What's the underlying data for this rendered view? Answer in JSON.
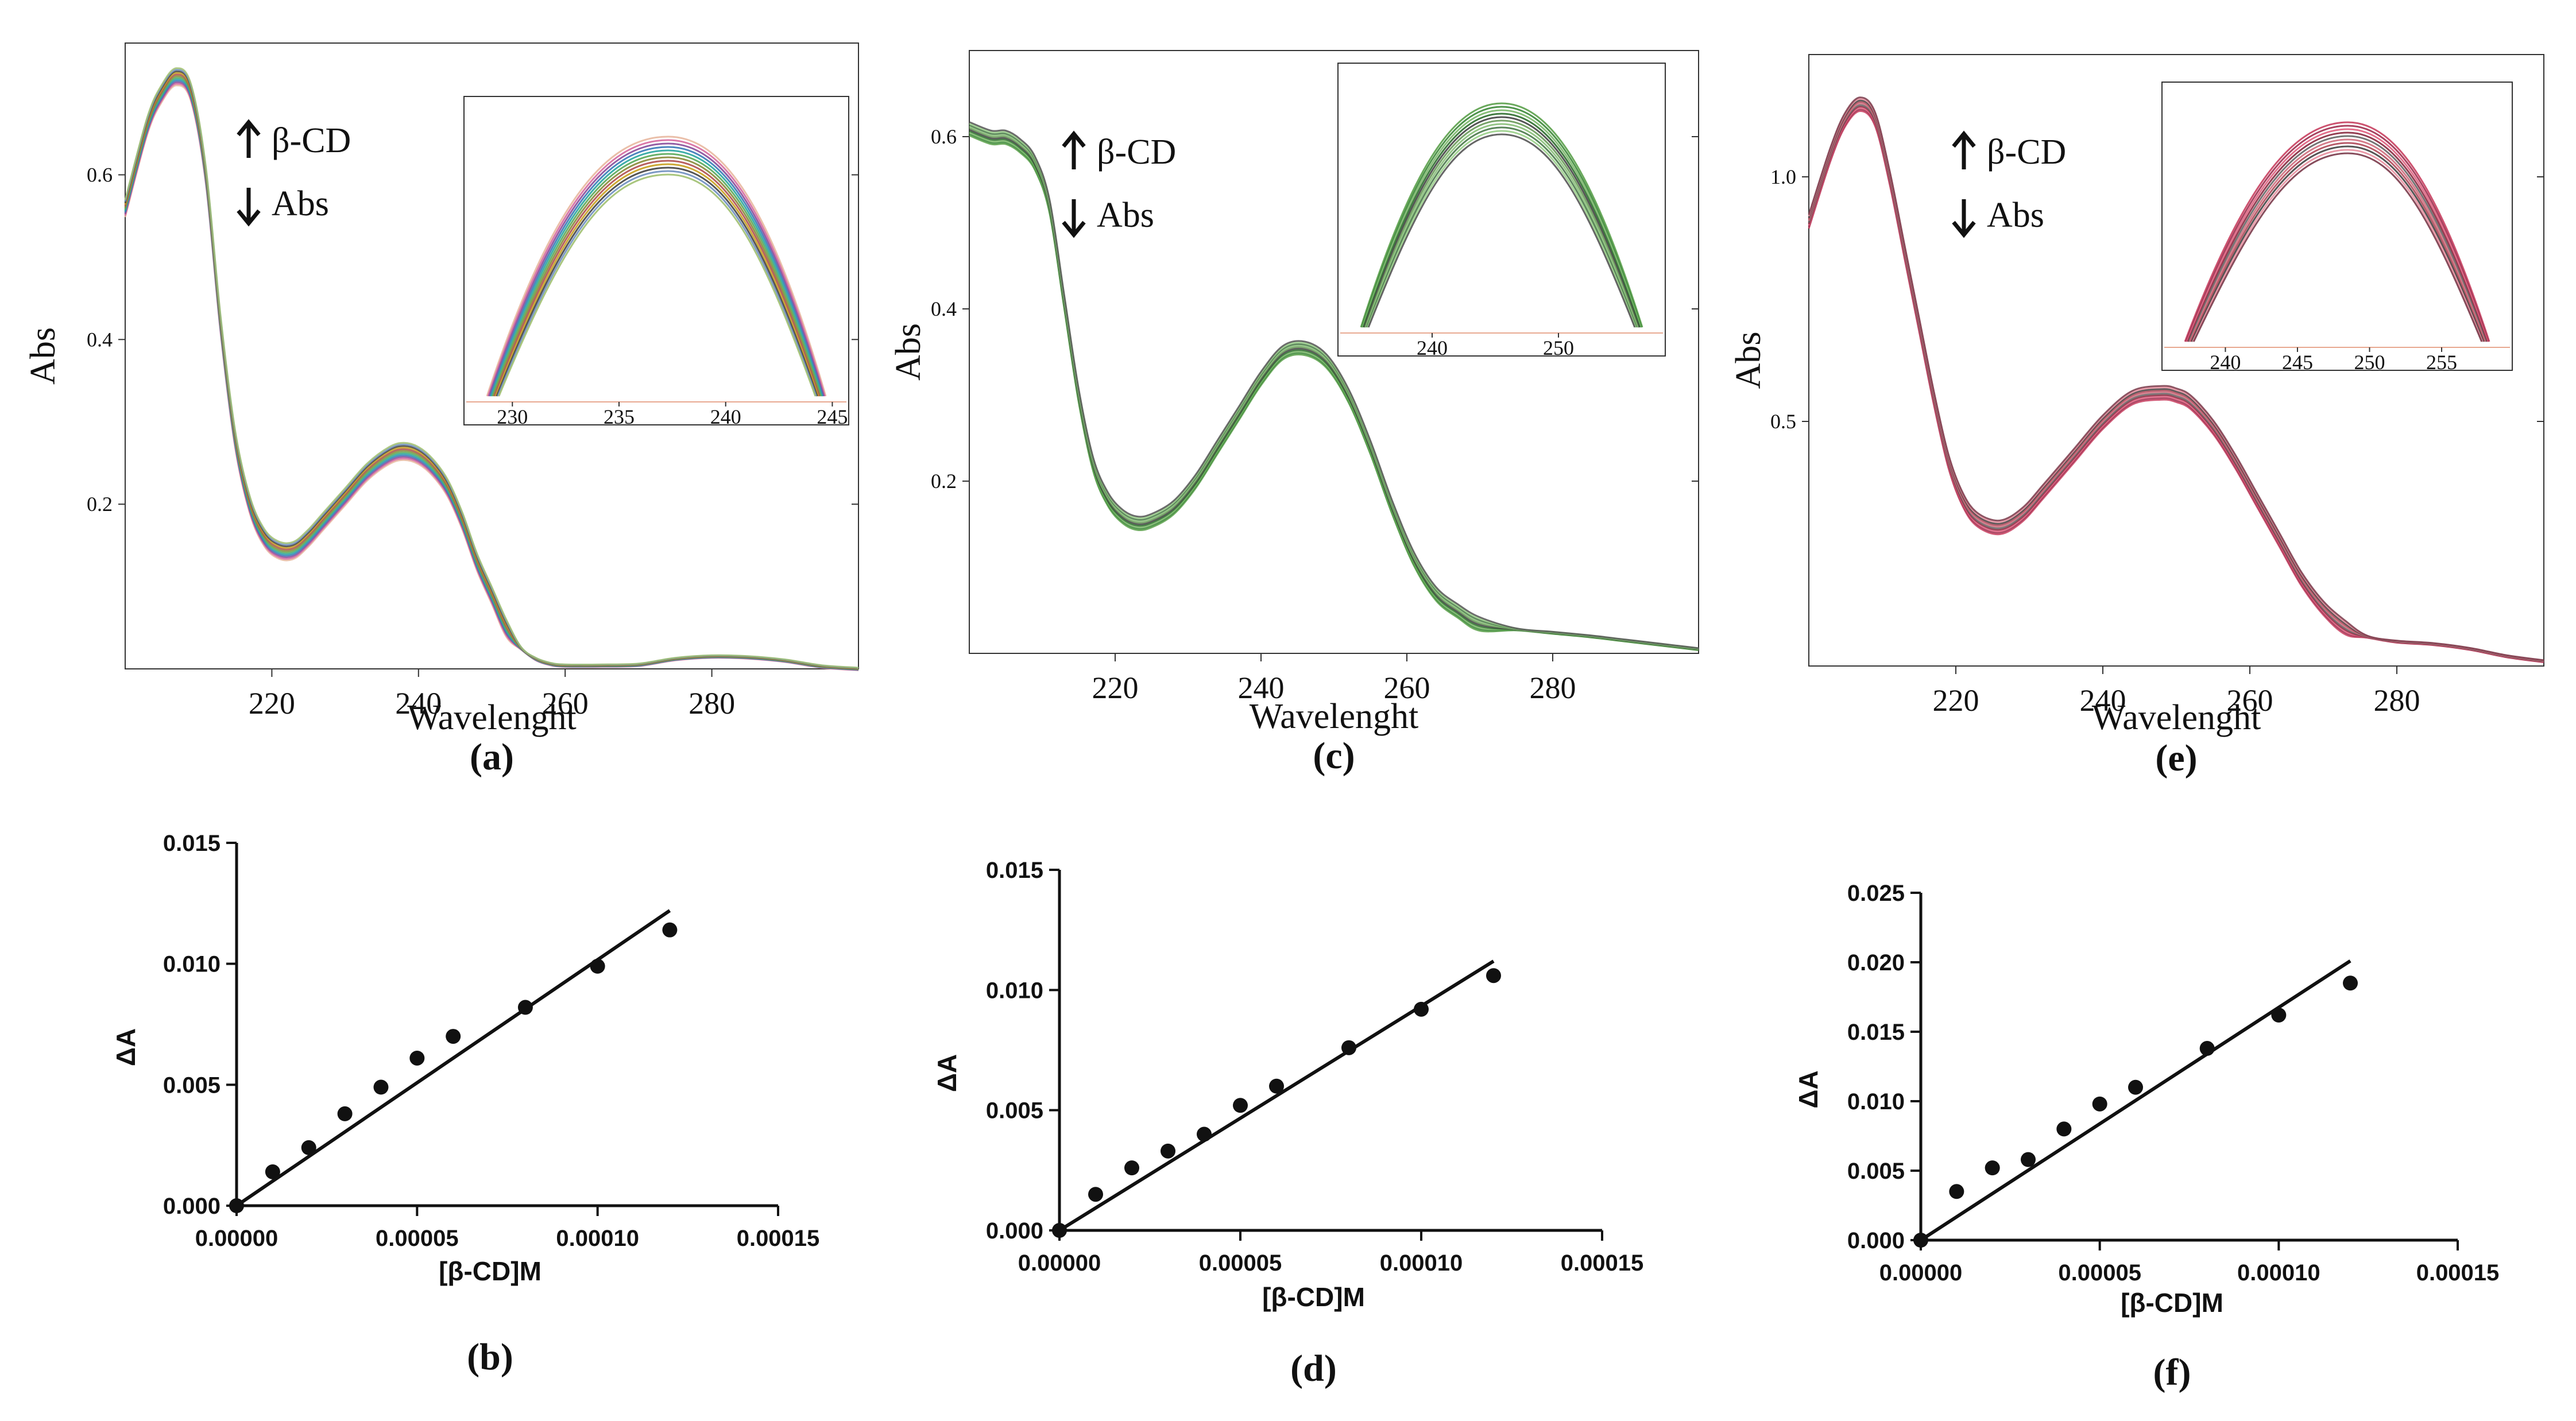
{
  "chart_data": [
    {
      "id": "a",
      "type": "line",
      "panel_label": "(a)",
      "xlabel": "Wavelenght",
      "ylabel": "Abs",
      "xlim": [
        200,
        300
      ],
      "ylim": [
        0.0,
        0.76
      ],
      "x_ticks": [
        "220",
        "240",
        "260",
        "280"
      ],
      "y_ticks": [
        "0.2",
        "0.4",
        "0.6"
      ],
      "x": [
        200,
        203,
        205,
        207,
        209,
        211,
        213,
        215,
        217,
        219,
        221,
        223,
        225,
        227,
        230,
        233,
        236,
        238,
        240,
        242,
        244,
        246,
        248,
        250,
        252,
        254,
        256,
        258,
        260,
        265,
        270,
        275,
        280,
        285,
        290,
        295,
        300
      ],
      "y": [
        0.56,
        0.66,
        0.7,
        0.72,
        0.7,
        0.6,
        0.42,
        0.28,
        0.2,
        0.16,
        0.145,
        0.145,
        0.16,
        0.18,
        0.21,
        0.24,
        0.26,
        0.265,
        0.26,
        0.245,
        0.22,
        0.18,
        0.13,
        0.09,
        0.05,
        0.025,
        0.012,
        0.006,
        0.004,
        0.004,
        0.005,
        0.012,
        0.015,
        0.014,
        0.01,
        0.003,
        0.0
      ],
      "annotations": [
        "β-CD",
        "Abs"
      ],
      "inset": {
        "xlim": [
          228,
          245.5
        ],
        "ylim": [
          0.0,
          1.0
        ],
        "x_ticks": [
          "230",
          "235",
          "240",
          "245"
        ],
        "peak_x": 237.3,
        "curve_count": 12
      },
      "series_colors": [
        "#e8b8a0",
        "#d66aa0",
        "#8a4c9a",
        "#3a7ab8",
        "#2aa6a0",
        "#5aaa5a",
        "#8a8a3a",
        "#b05050",
        "#c8a020",
        "#444444",
        "#7090c0",
        "#a0c070"
      ]
    },
    {
      "id": "c",
      "type": "line",
      "panel_label": "(c)",
      "xlabel": "Wavelenght",
      "ylabel": "Abs",
      "xlim": [
        200,
        300
      ],
      "ylim": [
        0.0,
        0.7
      ],
      "x_ticks": [
        "220",
        "240",
        "260",
        "280"
      ],
      "y_ticks": [
        "0.2",
        "0.4",
        "0.6"
      ],
      "x": [
        200,
        203,
        205,
        207,
        209,
        211,
        213,
        215,
        217,
        219,
        221,
        223,
        225,
        228,
        231,
        234,
        237,
        240,
        243,
        246,
        249,
        252,
        255,
        258,
        261,
        264,
        267,
        270,
        275,
        280,
        285,
        290,
        295,
        300
      ],
      "y": [
        0.61,
        0.6,
        0.6,
        0.59,
        0.57,
        0.52,
        0.41,
        0.3,
        0.22,
        0.18,
        0.16,
        0.152,
        0.155,
        0.17,
        0.2,
        0.24,
        0.28,
        0.32,
        0.35,
        0.355,
        0.34,
        0.3,
        0.24,
        0.17,
        0.11,
        0.07,
        0.05,
        0.035,
        0.028,
        0.024,
        0.02,
        0.015,
        0.01,
        0.005
      ],
      "annotations": [
        "β-CD",
        "Abs"
      ],
      "inset": {
        "xlim": [
          233,
          258
        ],
        "ylim": [
          0.0,
          1.0
        ],
        "x_ticks": [
          "240",
          "250"
        ],
        "peak_x": 245.5,
        "curve_count": 10
      },
      "series_colors": [
        "#5aa04a",
        "#3d8a3a",
        "#7bb86a",
        "#2e6e2e",
        "#444444",
        "#6a9a5a",
        "#8ac07a",
        "#4a7a4a",
        "#9ad08a",
        "#555555"
      ]
    },
    {
      "id": "e",
      "type": "line",
      "panel_label": "(e)",
      "xlabel": "Wavelenght",
      "ylabel": "Abs",
      "xlim": [
        200,
        300
      ],
      "ylim": [
        0.0,
        1.25
      ],
      "x_ticks": [
        "220",
        "240",
        "260",
        "280"
      ],
      "y_ticks": [
        "0.5",
        "1.0"
      ],
      "x": [
        200,
        203,
        205,
        207,
        209,
        211,
        213,
        215,
        217,
        219,
        221,
        223,
        226,
        229,
        232,
        236,
        240,
        244,
        248,
        250,
        252,
        255,
        258,
        261,
        264,
        267,
        270,
        273,
        276,
        280,
        285,
        290,
        295,
        300
      ],
      "y": [
        0.91,
        1.05,
        1.12,
        1.15,
        1.12,
        1.0,
        0.85,
        0.7,
        0.55,
        0.42,
        0.34,
        0.3,
        0.285,
        0.31,
        0.36,
        0.43,
        0.5,
        0.55,
        0.56,
        0.555,
        0.54,
        0.49,
        0.42,
        0.34,
        0.26,
        0.18,
        0.12,
        0.08,
        0.06,
        0.05,
        0.045,
        0.035,
        0.02,
        0.01
      ],
      "annotations": [
        "β-CD",
        "Abs"
      ],
      "inset": {
        "xlim": [
          236,
          259.5
        ],
        "ylim": [
          0.0,
          1.0
        ],
        "x_ticks": [
          "240",
          "245",
          "250",
          "255"
        ],
        "peak_x": 248.5,
        "curve_count": 10
      },
      "series_colors": [
        "#c84060",
        "#a03050",
        "#e06080",
        "#8a2a40",
        "#666666",
        "#d07080",
        "#b04a5a",
        "#444444",
        "#e890a0",
        "#7a3a4a"
      ]
    },
    {
      "id": "b",
      "type": "scatter",
      "panel_label": "(b)",
      "xlabel": "[β-CD]M",
      "ylabel": "ΔA",
      "xlim": [
        0,
        0.00015
      ],
      "ylim": [
        0,
        0.015
      ],
      "x_ticks": [
        "0.00000",
        "0.00005",
        "0.00010",
        "0.00015"
      ],
      "y_ticks": [
        "0.000",
        "0.005",
        "0.010",
        "0.015"
      ],
      "x": [
        0,
        1e-05,
        2e-05,
        3e-05,
        4e-05,
        5e-05,
        6e-05,
        8e-05,
        0.0001,
        0.00012
      ],
      "y": [
        0,
        0.0014,
        0.0024,
        0.0038,
        0.0049,
        0.0061,
        0.007,
        0.0082,
        0.0099,
        0.0114
      ],
      "fit": {
        "x": [
          0,
          0.00012
        ],
        "y": [
          0,
          0.0122
        ]
      }
    },
    {
      "id": "d",
      "type": "scatter",
      "panel_label": "(d)",
      "xlabel": "[β-CD]M",
      "ylabel": "ΔA",
      "xlim": [
        0,
        0.00015
      ],
      "ylim": [
        0,
        0.015
      ],
      "x_ticks": [
        "0.00000",
        "0.00005",
        "0.00010",
        "0.00015"
      ],
      "y_ticks": [
        "0.000",
        "0.005",
        "0.010",
        "0.015"
      ],
      "x": [
        0,
        1e-05,
        2e-05,
        3e-05,
        4e-05,
        5e-05,
        6e-05,
        8e-05,
        0.0001,
        0.00012
      ],
      "y": [
        0,
        0.0015,
        0.0026,
        0.0033,
        0.004,
        0.0052,
        0.006,
        0.0076,
        0.0092,
        0.0106
      ],
      "fit": {
        "x": [
          0,
          0.00012
        ],
        "y": [
          0,
          0.0112
        ]
      }
    },
    {
      "id": "f",
      "type": "scatter",
      "panel_label": "(f)",
      "xlabel": "[β-CD]M",
      "ylabel": "ΔA",
      "xlim": [
        0,
        0.00015
      ],
      "ylim": [
        0,
        0.025
      ],
      "x_ticks": [
        "0.00000",
        "0.00005",
        "0.00010",
        "0.00015"
      ],
      "y_ticks": [
        "0.000",
        "0.005",
        "0.010",
        "0.015",
        "0.020",
        "0.025"
      ],
      "x": [
        0,
        1e-05,
        2e-05,
        3e-05,
        4e-05,
        5e-05,
        6e-05,
        8e-05,
        0.0001,
        0.00012
      ],
      "y": [
        0,
        0.0035,
        0.0052,
        0.0058,
        0.008,
        0.0098,
        0.011,
        0.0138,
        0.0162,
        0.0185
      ],
      "fit": {
        "x": [
          0,
          0.00012
        ],
        "y": [
          0,
          0.0201
        ]
      }
    }
  ]
}
